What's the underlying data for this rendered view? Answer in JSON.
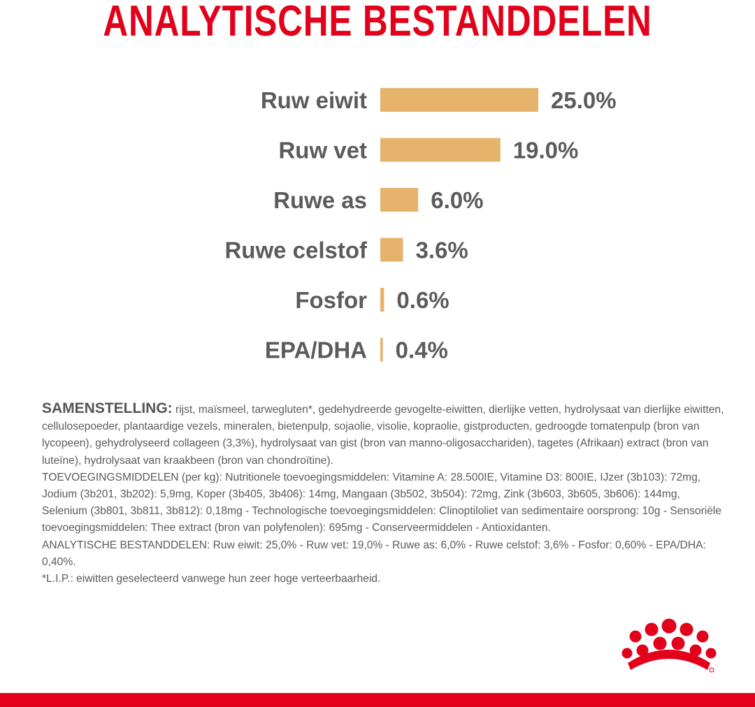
{
  "title": "ANALYTISCHE BESTANDDELEN",
  "colors": {
    "title": "#e2001a",
    "bar": "#e5b36c",
    "text": "#5b5b5b",
    "footer_line": "#e2001a",
    "logo": "#e2001a"
  },
  "chart_data": {
    "type": "bar",
    "orientation": "horizontal",
    "categories": [
      "Ruw eiwit",
      "Ruw vet",
      "Ruwe as",
      "Ruwe celstof",
      "Fosfor",
      "EPA/DHA"
    ],
    "values": [
      25.0,
      19.0,
      6.0,
      3.6,
      0.6,
      0.4
    ],
    "value_labels": [
      "25.0%",
      "19.0%",
      "6.0%",
      "3.6%",
      "0.6%",
      "0.4%"
    ],
    "unit": "%",
    "xlim": [
      0,
      25
    ],
    "grid": false,
    "legend": "none"
  },
  "composition": {
    "heading": "SAMENSTELLING:",
    "intro": " rijst, maïsmeel, tarwegluten*, gedehydreerde gevogelte-eiwitten, dierlijke vetten, hydrolysaat van dierlijke eiwitten, cellulosepoeder, plantaardige vezels, mineralen, bietenpulp, sojaolie, visolie, kopraolie, gistproducten, gedroogde tomatenpulp (bron van lycopeen), gehydrolyseerd collageen (3,3%), hydrolysaat van gist (bron van manno-oligosacchariden), tagetes (Afrikaan) extract (bron van luteïne), hydrolysaat van kraakbeen (bron van chondroïtine).",
    "additives": "TOEVOEGINGSMIDDELEN (per kg): Nutritionele toevoegingsmiddelen: Vitamine A: 28.500IE, Vitamine D3: 800IE, IJzer (3b103): 72mg, Jodium (3b201, 3b202): 5,9mg, Koper (3b405, 3b406): 14mg, Mangaan (3b502, 3b504): 72mg, Zink (3b603, 3b605, 3b606): 144mg, Selenium (3b801, 3b811, 3b812): 0,18mg - Technologische toevoegingsmiddelen: Clinoptiloliet van sedimentaire oorsprong: 10g - Sensoriële toevoegingsmiddelen: Thee extract (bron van polyfenolen): 695mg - Conserveermiddelen - Antioxidanten.",
    "analytical": "ANALYTISCHE BESTANDDELEN: Ruw eiwit: 25,0% - Ruw vet: 19,0% - Ruwe as: 6,0% - Ruwe celstof: 3,6% - Fosfor: 0,60% - EPA/DHA: 0,40%.",
    "footnote": "*L.I.P.: eiwitten geselecteerd vanwege hun zeer hoge verteerbaarheid."
  },
  "logo": "royal-canin-crown-icon"
}
